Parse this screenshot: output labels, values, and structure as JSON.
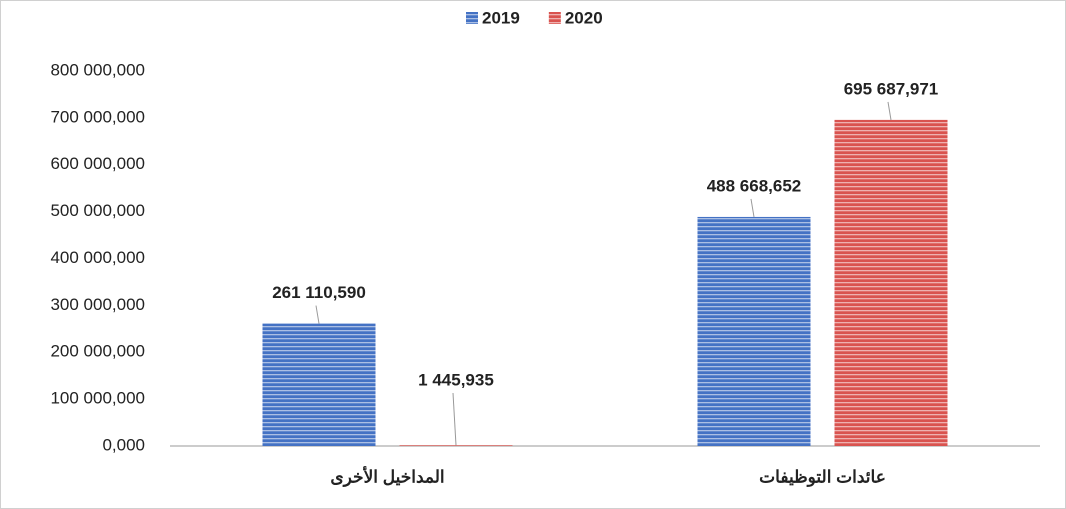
{
  "chart_data": {
    "type": "bar",
    "categories": [
      "المداخيل الأخرى",
      "عائدات التوظيفات"
    ],
    "series": [
      {
        "name": "2019",
        "color": "#4472c4",
        "values": [
          261110590,
          488668652
        ],
        "value_labels": [
          "261 110,590",
          "488 668,652"
        ]
      },
      {
        "name": "2020",
        "color": "#d9534f",
        "values": [
          1445935,
          695687971
        ],
        "value_labels": [
          "1 445,935",
          "695 687,971"
        ]
      }
    ],
    "ylim": [
      0,
      800000000
    ],
    "yticks": [
      {
        "value": 0,
        "label": "0,000"
      },
      {
        "value": 100000000,
        "label": "100 000,000"
      },
      {
        "value": 200000000,
        "label": "200 000,000"
      },
      {
        "value": 300000000,
        "label": "300 000,000"
      },
      {
        "value": 400000000,
        "label": "400 000,000"
      },
      {
        "value": 500000000,
        "label": "500 000,000"
      },
      {
        "value": 600000000,
        "label": "600 000,000"
      },
      {
        "value": 700000000,
        "label": "700 000,000"
      },
      {
        "value": 800000000,
        "label": "800 000,000"
      }
    ],
    "legend": "top",
    "grid": false
  }
}
